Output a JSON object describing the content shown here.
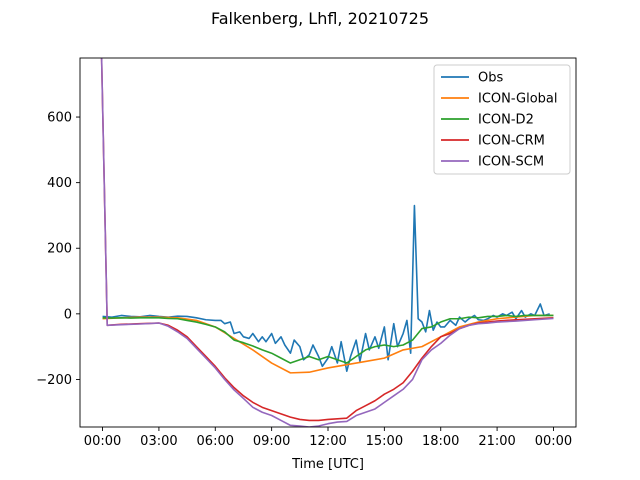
{
  "chart_data": {
    "type": "line",
    "title": "Falkenberg, Lhfl, 20210725",
    "xlabel": "Time [UTC]",
    "ylabel": "",
    "x_unit": "hours UTC (0 = 00:00 on 2021-07-25, 24 = 00:00 next day)",
    "xlim": [
      -1.2,
      25.2
    ],
    "ylim": [
      -345,
      780
    ],
    "x_ticks": [
      0,
      3,
      6,
      9,
      12,
      15,
      18,
      21,
      24
    ],
    "x_tick_labels": [
      "00:00",
      "03:00",
      "06:00",
      "09:00",
      "12:00",
      "15:00",
      "18:00",
      "21:00",
      "00:00"
    ],
    "y_ticks": [
      -200,
      0,
      200,
      400,
      600
    ],
    "y_tick_labels": [
      "−200",
      "0",
      "200",
      "400",
      "600"
    ],
    "grid": false,
    "legend_position": "top-right",
    "series": [
      {
        "name": "Obs",
        "color": "#1f77b4",
        "x": [
          0,
          0.5,
          1,
          1.5,
          2,
          2.5,
          3,
          3.5,
          4,
          4.5,
          5,
          5.5,
          6,
          6.3,
          6.5,
          6.8,
          7,
          7.3,
          7.5,
          7.8,
          8,
          8.3,
          8.5,
          8.7,
          9,
          9.2,
          9.5,
          9.7,
          10,
          10.2,
          10.5,
          10.7,
          11,
          11.2,
          11.5,
          11.7,
          12,
          12.2,
          12.5,
          12.7,
          13,
          13.2,
          13.5,
          13.7,
          14,
          14.2,
          14.5,
          14.7,
          15,
          15.2,
          15.5,
          15.7,
          16,
          16.2,
          16.4,
          16.6,
          16.8,
          17,
          17.2,
          17.4,
          17.6,
          17.8,
          18,
          18.2,
          18.5,
          18.8,
          19,
          19.3,
          19.5,
          19.8,
          20,
          20.3,
          20.5,
          20.8,
          21,
          21.3,
          21.5,
          21.8,
          22,
          22.3,
          22.5,
          22.8,
          23,
          23.3,
          23.5,
          23.8
        ],
        "y": [
          -8,
          -10,
          -5,
          -8,
          -9,
          -5,
          -8,
          -10,
          -7,
          -8,
          -12,
          -18,
          -20,
          -20,
          -30,
          -25,
          -60,
          -55,
          -70,
          -75,
          -60,
          -85,
          -70,
          -85,
          -60,
          -90,
          -70,
          -95,
          -120,
          -80,
          -100,
          -140,
          -125,
          -95,
          -130,
          -160,
          -135,
          -100,
          -150,
          -85,
          -175,
          -130,
          -80,
          -145,
          -60,
          -110,
          -70,
          -105,
          -40,
          -140,
          -30,
          -100,
          -60,
          -20,
          -120,
          330,
          -15,
          -25,
          -55,
          10,
          -50,
          -25,
          -40,
          -40,
          -20,
          -35,
          -10,
          -25,
          -15,
          -5,
          -18,
          -20,
          -15,
          -5,
          -10,
          0,
          -5,
          5,
          -15,
          10,
          -10,
          0,
          -5,
          30,
          -5,
          0
        ]
      },
      {
        "name": "ICON-Global",
        "color": "#ff7f0e",
        "x": [
          0,
          1,
          2,
          3,
          4,
          5,
          6,
          7,
          8,
          9,
          10,
          11,
          12,
          13,
          14,
          15,
          16,
          17,
          18,
          19,
          20,
          21,
          22,
          23,
          24
        ],
        "y": [
          -15,
          -12,
          -10,
          -10,
          -12,
          -20,
          -40,
          -75,
          -110,
          -150,
          -180,
          -178,
          -165,
          -155,
          -145,
          -135,
          -110,
          -100,
          -70,
          -40,
          -25,
          -15,
          -10,
          -5,
          -5
        ]
      },
      {
        "name": "ICON-D2",
        "color": "#2ca02c",
        "x": [
          0,
          0.5,
          1,
          1.5,
          2,
          2.5,
          3,
          3.5,
          4,
          4.5,
          5,
          5.5,
          6,
          6.5,
          7,
          7.5,
          8,
          8.5,
          9,
          9.5,
          10,
          10.5,
          11,
          11.5,
          12,
          12.5,
          13,
          13.5,
          14,
          14.5,
          15,
          15.5,
          16,
          16.5,
          17,
          17.5,
          18,
          18.5,
          19,
          19.5,
          20,
          20.5,
          21,
          21.5,
          22,
          22.5,
          23,
          23.5,
          24
        ],
        "y": [
          -12,
          -13,
          -12,
          -13,
          -12,
          -12,
          -12,
          -14,
          -15,
          -20,
          -25,
          -32,
          -40,
          -55,
          -80,
          -88,
          -98,
          -110,
          -120,
          -135,
          -150,
          -140,
          -130,
          -140,
          -130,
          -140,
          -150,
          -130,
          -110,
          -100,
          -95,
          -100,
          -95,
          -80,
          -45,
          -40,
          -25,
          -15,
          -15,
          -10,
          -12,
          -8,
          -8,
          -5,
          -8,
          -5,
          -5,
          -5,
          -5
        ]
      },
      {
        "name": "ICON-CRM",
        "color": "#d62728",
        "x": [
          -0.05,
          0.25,
          1,
          2,
          3,
          3.5,
          4,
          4.5,
          5,
          5.5,
          6,
          6.5,
          7,
          7.5,
          8,
          8.5,
          9,
          9.5,
          10,
          10.5,
          11,
          11.5,
          12,
          12.5,
          13,
          13.5,
          14,
          14.5,
          15,
          15.5,
          16,
          16.5,
          17,
          17.5,
          18,
          18.5,
          19,
          19.5,
          20,
          20.5,
          21,
          22,
          23,
          24
        ],
        "y": [
          780,
          -35,
          -32,
          -30,
          -28,
          -35,
          -50,
          -70,
          -100,
          -130,
          -160,
          -195,
          -225,
          -250,
          -270,
          -285,
          -295,
          -305,
          -315,
          -322,
          -325,
          -325,
          -322,
          -320,
          -318,
          -295,
          -280,
          -265,
          -245,
          -230,
          -210,
          -175,
          -135,
          -100,
          -70,
          -60,
          -45,
          -35,
          -28,
          -25,
          -22,
          -18,
          -15,
          -12
        ]
      },
      {
        "name": "ICON-SCM",
        "color": "#9467bd",
        "x": [
          -0.05,
          0.25,
          1,
          2,
          3,
          3.5,
          4,
          4.5,
          5,
          5.5,
          6,
          6.5,
          7,
          7.5,
          8,
          8.5,
          9,
          9.5,
          10,
          10.5,
          11,
          11.5,
          12,
          12.5,
          13,
          13.5,
          14,
          14.5,
          15,
          15.5,
          16,
          16.5,
          17,
          17.5,
          18,
          18.5,
          19,
          19.5,
          20,
          20.5,
          21,
          22,
          23,
          24
        ],
        "y": [
          780,
          -35,
          -33,
          -31,
          -28,
          -38,
          -55,
          -75,
          -105,
          -135,
          -165,
          -200,
          -232,
          -258,
          -285,
          -300,
          -310,
          -325,
          -340,
          -342,
          -345,
          -342,
          -335,
          -330,
          -328,
          -310,
          -300,
          -290,
          -270,
          -250,
          -230,
          -200,
          -140,
          -110,
          -90,
          -65,
          -45,
          -35,
          -30,
          -28,
          -25,
          -22,
          -18,
          -14
        ]
      }
    ]
  }
}
